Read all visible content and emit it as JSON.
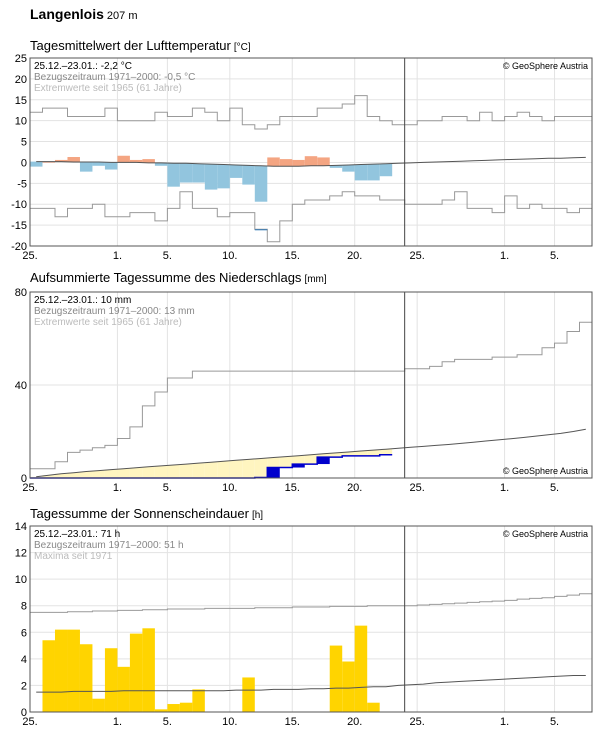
{
  "station": {
    "name": "Langenlois",
    "altitude": "207 m"
  },
  "x_axis": {
    "tick_labels": [
      "25.",
      "1.",
      "5.",
      "10.",
      "15.",
      "20.",
      "25.",
      "1.",
      "5."
    ],
    "label_days": [
      0,
      7,
      11,
      16,
      21,
      26,
      31,
      38,
      42
    ],
    "days_span": 45,
    "current_day": 30
  },
  "panels": [
    {
      "title": "Tagesmittelwert der Lufttemperatur",
      "unit": "[°C]",
      "credit": "© GeoSphere Austria",
      "legend": [
        "25.12.–23.01.: -2,2 °C",
        "Bezugszeitraum 1971–2000: -0,5 °C",
        "Extremwerte seit 1965 (61 Jahre)"
      ]
    },
    {
      "title": "Aufsummierte Tagessumme des Niederschlags",
      "unit": "[mm]",
      "credit": "© GeoSphere Austria",
      "legend": [
        "25.12.–23.01.: 10 mm",
        "Bezugszeitraum 1971–2000: 13 mm",
        "Extremwerte seit 1965 (61 Jahre)"
      ]
    },
    {
      "title": "Tagessumme der Sonnenscheindauer",
      "unit": "[h]",
      "credit": "© GeoSphere Austria",
      "legend": [
        "25.12.–23.01.: 71 h",
        "Bezugszeitraum 1971–2000: 51 h",
        "Maxima seit 1971"
      ]
    }
  ],
  "chart_data": [
    {
      "type": "bar",
      "ylim": [
        -20,
        25
      ],
      "yticks": [
        -20,
        -15,
        -10,
        -5,
        0,
        5,
        10,
        15,
        20,
        25
      ],
      "grid": true,
      "colors": {
        "above": "#f4a582",
        "below": "#92c5de",
        "below_extreme": "#2f78b8",
        "normal": "#555555",
        "extremes": "#999999"
      },
      "observed": [
        -1,
        0.2,
        0.6,
        1.3,
        -2.2,
        -0.8,
        -1.7,
        1.6,
        0.6,
        0.8,
        -0.8,
        -5.8,
        -4.8,
        -4.8,
        -6.5,
        -6.2,
        -3.7,
        -5.3,
        -9.4,
        1.2,
        0.8,
        0.6,
        1.5,
        1.2,
        -1.3,
        -2.2,
        -4.3,
        -4.3,
        -3.3
      ],
      "extreme_days": [
        18
      ],
      "normal": [
        0.2,
        0.2,
        0.2,
        0.1,
        0.1,
        0.1,
        0,
        0,
        0,
        -0.1,
        -0.1,
        -0.2,
        -0.2,
        -0.3,
        -0.4,
        -0.5,
        -0.6,
        -0.7,
        -0.8,
        -0.9,
        -0.9,
        -0.9,
        -0.8,
        -0.8,
        -0.7,
        -0.6,
        -0.5,
        -0.4,
        -0.3,
        -0.2,
        -0.1,
        0,
        0.1,
        0.2,
        0.3,
        0.4,
        0.5,
        0.6,
        0.7,
        0.8,
        0.9,
        1.0,
        1.0,
        1.1,
        1.2
      ],
      "max": [
        12,
        13,
        13,
        11,
        11,
        11,
        13,
        10,
        10,
        10,
        12,
        11,
        11,
        13,
        12,
        10,
        13,
        9,
        8,
        9,
        11,
        11,
        11,
        13,
        13,
        14,
        16,
        11,
        10,
        9,
        9,
        10,
        10,
        11,
        11,
        10,
        12,
        10,
        11,
        12,
        11,
        10,
        11,
        11,
        11
      ],
      "min": [
        -11,
        -11,
        -13,
        -11,
        -11,
        -10,
        -13,
        -13,
        -12,
        -12,
        -14,
        -11,
        -7,
        -11,
        -11,
        -13,
        -12,
        -12,
        -16,
        -19,
        -14,
        -10,
        -9,
        -9,
        -8,
        -7,
        -8,
        -8,
        -9,
        -9,
        -10,
        -10,
        -10,
        -9,
        -7,
        -11,
        -11,
        -12,
        -8,
        -11,
        -10,
        -11,
        -11,
        -12,
        -11
      ]
    },
    {
      "type": "area",
      "ylim": [
        0,
        80
      ],
      "yticks": [
        0,
        40,
        80
      ],
      "grid": true,
      "colors": {
        "observed": "#0000cc",
        "deficit": "#fff5c0",
        "surplus": "#0000cc",
        "normal": "#555555",
        "extremes": "#999999"
      },
      "observed": [
        0,
        0,
        0,
        0,
        0,
        0,
        0,
        0,
        0,
        0,
        0,
        0,
        0,
        0,
        0,
        0,
        0,
        0,
        0.2,
        4.5,
        4.5,
        6,
        6,
        9,
        9,
        9.5,
        9.5,
        9.5,
        10
      ],
      "normal": [
        0.5,
        1.2,
        1.8,
        2.3,
        2.8,
        3.2,
        3.6,
        4.0,
        4.4,
        4.8,
        5.2,
        5.6,
        6.0,
        6.4,
        6.8,
        7.2,
        7.6,
        8.0,
        8.4,
        8.8,
        9.2,
        9.6,
        10.0,
        10.4,
        10.8,
        11.2,
        11.6,
        12.0,
        12.4,
        12.8,
        13.2,
        13.6,
        14.0,
        14.4,
        14.9,
        15.4,
        15.9,
        16.4,
        16.9,
        17.4,
        18.0,
        18.6,
        19.2,
        20.0,
        21.0
      ],
      "max": [
        4,
        4,
        7,
        11,
        12,
        13,
        14,
        17,
        22,
        31,
        37,
        43,
        43,
        46,
        46,
        46,
        46,
        46,
        46,
        46,
        46,
        46,
        46,
        46,
        46,
        46,
        46,
        46,
        46,
        46,
        47,
        47,
        48,
        50,
        51,
        51,
        51,
        52,
        52,
        53,
        53,
        56,
        58,
        63,
        67
      ],
      "min": [
        0,
        0,
        0,
        0,
        0,
        0,
        0,
        0,
        0,
        0,
        0,
        0,
        0,
        0,
        0,
        0,
        0,
        0,
        0,
        0,
        0,
        0,
        0,
        0,
        0,
        0,
        0,
        0,
        0,
        0,
        0,
        0,
        0,
        0,
        0,
        0,
        0,
        0,
        0,
        0,
        0,
        0,
        0,
        0,
        0
      ]
    },
    {
      "type": "bar",
      "ylim": [
        0,
        14
      ],
      "yticks": [
        0,
        2,
        4,
        6,
        8,
        10,
        12,
        14
      ],
      "grid": true,
      "colors": {
        "observed": "#ffd400",
        "normal": "#555555",
        "extremes": "#999999"
      },
      "observed": [
        0,
        5.4,
        6.2,
        6.2,
        5.1,
        1.0,
        4.8,
        3.4,
        5.9,
        6.3,
        0.2,
        0.6,
        0.7,
        1.7,
        0,
        0,
        0,
        2.6,
        0,
        0,
        0,
        0,
        0,
        0,
        5.0,
        3.8,
        6.5,
        0.7,
        0
      ],
      "normal": [
        1.5,
        1.5,
        1.5,
        1.55,
        1.55,
        1.55,
        1.55,
        1.6,
        1.6,
        1.6,
        1.6,
        1.6,
        1.6,
        1.6,
        1.6,
        1.6,
        1.65,
        1.65,
        1.65,
        1.7,
        1.7,
        1.7,
        1.75,
        1.75,
        1.8,
        1.8,
        1.85,
        1.9,
        1.9,
        2.0,
        2.05,
        2.1,
        2.2,
        2.25,
        2.3,
        2.35,
        2.4,
        2.45,
        2.5,
        2.55,
        2.6,
        2.65,
        2.7,
        2.75,
        2.75
      ],
      "max": [
        7.5,
        7.5,
        7.5,
        7.55,
        7.55,
        7.6,
        7.6,
        7.65,
        7.65,
        7.7,
        7.7,
        7.75,
        7.75,
        7.75,
        7.8,
        7.8,
        7.8,
        7.8,
        7.85,
        7.85,
        7.85,
        7.9,
        7.9,
        7.9,
        7.95,
        7.95,
        7.95,
        8.0,
        8.0,
        8.0,
        8.0,
        8.05,
        8.1,
        8.15,
        8.2,
        8.25,
        8.3,
        8.35,
        8.4,
        8.5,
        8.55,
        8.6,
        8.7,
        8.8,
        8.9
      ]
    }
  ]
}
